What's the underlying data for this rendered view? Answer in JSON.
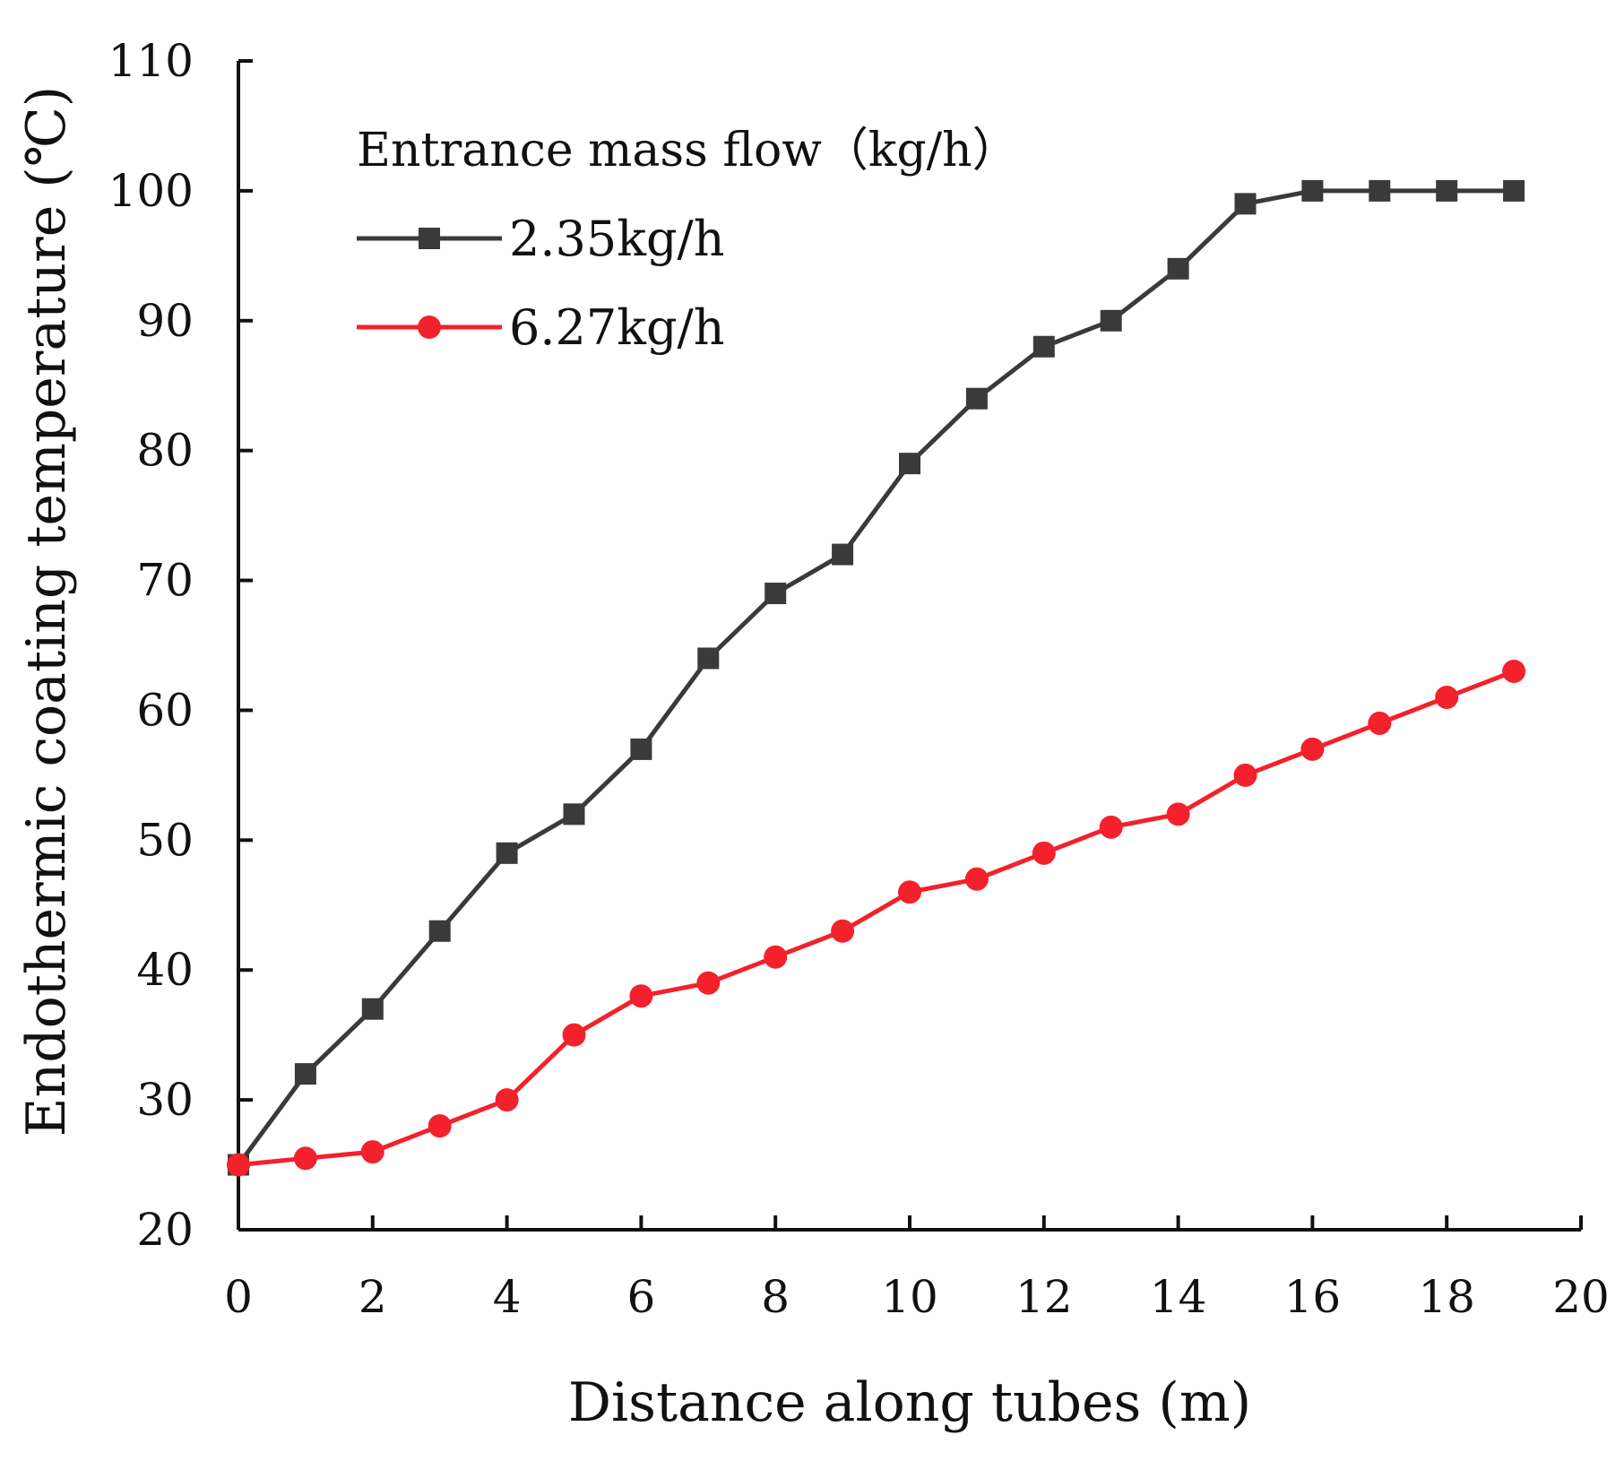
{
  "chart_data": {
    "type": "line",
    "title": "",
    "xlabel": "Distance along tubes (m)",
    "ylabel": "Endothermic coating temperature (℃)",
    "xlim": [
      0,
      20
    ],
    "ylim": [
      20,
      110
    ],
    "xticks": [
      0,
      2,
      4,
      6,
      8,
      10,
      12,
      14,
      16,
      18,
      20
    ],
    "yticks": [
      20,
      30,
      40,
      50,
      60,
      70,
      80,
      90,
      100,
      110
    ],
    "grid": false,
    "legend": {
      "title": "Entrance mass flow（kg/h）",
      "position": "top-left"
    },
    "series": [
      {
        "name": "2.35kg/h",
        "color": "#3a3a3a",
        "marker": "square",
        "x": [
          0,
          1,
          2,
          3,
          4,
          5,
          6,
          7,
          8,
          9,
          10,
          11,
          12,
          13,
          14,
          15,
          16,
          17,
          18,
          19
        ],
        "values": [
          25,
          32,
          37,
          43,
          49,
          52,
          57,
          64,
          69,
          72,
          79,
          84,
          88,
          90,
          94,
          99,
          100,
          100,
          100,
          100
        ]
      },
      {
        "name": "6.27kg/h",
        "color": "#f2212b",
        "marker": "circle",
        "x": [
          0,
          1,
          2,
          3,
          4,
          5,
          6,
          7,
          8,
          9,
          10,
          11,
          12,
          13,
          14,
          15,
          16,
          17,
          18,
          19
        ],
        "values": [
          25,
          25.5,
          26,
          28,
          30,
          35,
          38,
          39,
          41,
          43,
          46,
          47,
          49,
          51,
          52,
          55,
          57,
          59,
          61,
          63
        ]
      }
    ]
  }
}
